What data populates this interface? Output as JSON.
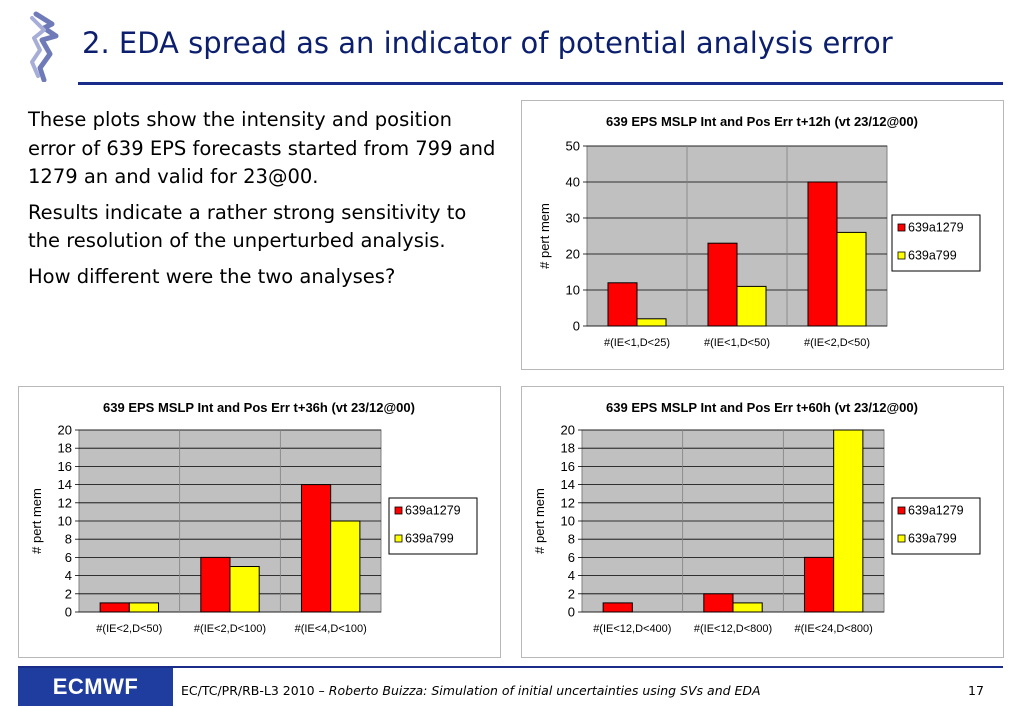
{
  "header": {
    "title": "2. EDA spread as an indicator of potential analysis error"
  },
  "body": {
    "paragraphs": [
      "These plots show the intensity and position error of 639 EPS forecasts started from 799 and 1279 an and valid for 23@00.",
      "Results indicate a rather strong sensitivity to the resolution of the unperturbed analysis.",
      "How different were the two analyses?"
    ]
  },
  "colors": {
    "series_639a1279": "#ff0000",
    "series_639a799": "#ffff00",
    "plot_background": "#c0c0c0",
    "title_blue": "#0b1f6e",
    "ecmwf_blue": "#1f3d9e"
  },
  "chart_data": [
    {
      "type": "bar",
      "title": "639 EPS MSLP Int and Pos Err t+12h (vt 23/12@00)",
      "ylabel": "# pert mem",
      "xlabel": "",
      "categories": [
        "#(IE<1,D<25)",
        "#(IE<1,D<50)",
        "#(IE<2,D<50)"
      ],
      "series": [
        {
          "name": "639a1279",
          "values": [
            12,
            23,
            40
          ]
        },
        {
          "name": "639a799",
          "values": [
            2,
            11,
            26
          ]
        }
      ],
      "ylim": [
        0,
        50
      ],
      "yticks": [
        0,
        10,
        20,
        30,
        40,
        50
      ],
      "grid": true,
      "legend": "right"
    },
    {
      "type": "bar",
      "title": "639 EPS MSLP Int and Pos Err t+36h (vt 23/12@00)",
      "ylabel": "# pert mem",
      "xlabel": "",
      "categories": [
        "#(IE<2,D<50)",
        "#(IE<2,D<100)",
        "#(IE<4,D<100)"
      ],
      "series": [
        {
          "name": "639a1279",
          "values": [
            1,
            6,
            14
          ]
        },
        {
          "name": "639a799",
          "values": [
            1,
            5,
            10
          ]
        }
      ],
      "ylim": [
        0,
        20
      ],
      "yticks": [
        0,
        2,
        4,
        6,
        8,
        10,
        12,
        14,
        16,
        18,
        20
      ],
      "grid": true,
      "legend": "right"
    },
    {
      "type": "bar",
      "title": "639 EPS MSLP Int and Pos Err t+60h (vt 23/12@00)",
      "ylabel": "# pert mem",
      "xlabel": "",
      "categories": [
        "#(IE<12,D<400)",
        "#(IE<12,D<800)",
        "#(IE<24,D<800)"
      ],
      "series": [
        {
          "name": "639a1279",
          "values": [
            1,
            2,
            6
          ]
        },
        {
          "name": "639a799",
          "values": [
            0,
            1,
            20
          ]
        }
      ],
      "ylim": [
        0,
        20
      ],
      "yticks": [
        0,
        2,
        4,
        6,
        8,
        10,
        12,
        14,
        16,
        18,
        20
      ],
      "grid": true,
      "legend": "right"
    }
  ],
  "footer": {
    "logo_text": "ECMWF",
    "ref": "EC/TC/PR/RB-L3 2010 – ",
    "citation": "Roberto Buizza: Simulation of initial uncertainties using SVs and EDA",
    "page_number": "17"
  }
}
